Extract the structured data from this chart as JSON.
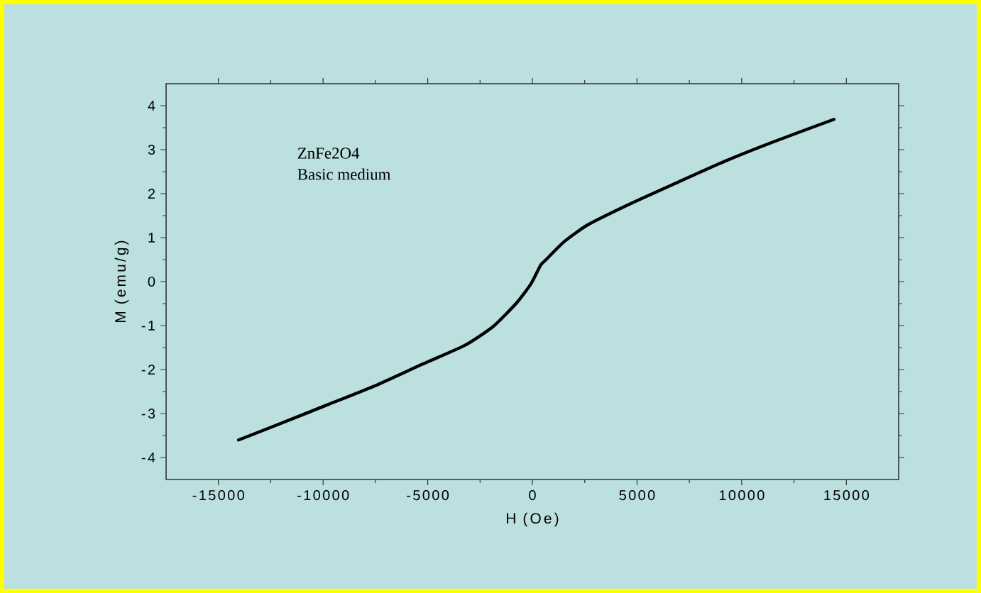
{
  "chart_data": {
    "type": "line",
    "xlabel": "H (Oe)",
    "ylabel": "M (emu/g)",
    "annotations": [
      "ZnFe2O4",
      "Basic medium"
    ],
    "xlim": [
      -17500,
      17500
    ],
    "xticks": [
      -15000,
      -10000,
      -5000,
      0,
      5000,
      10000,
      15000
    ],
    "ylim": [
      -4.5,
      4.5
    ],
    "yticks": [
      -4,
      -3,
      -2,
      -1,
      0,
      1,
      2,
      3,
      4
    ],
    "grid": false,
    "series": [
      {
        "color": "#000000",
        "x": [
          -14040,
          -12050,
          -9790,
          -7530,
          -5265,
          -3230,
          -1872,
          -746,
          -68,
          387,
          610,
          1520,
          2645,
          4680,
          6950,
          9210,
          11470,
          14410
        ],
        "values": [
          -3.6,
          -3.23,
          -2.8,
          -2.37,
          -1.88,
          -1.45,
          -1.02,
          -0.48,
          -0.05,
          0.37,
          0.48,
          0.91,
          1.29,
          1.77,
          2.26,
          2.74,
          3.17,
          3.69
        ]
      }
    ]
  }
}
